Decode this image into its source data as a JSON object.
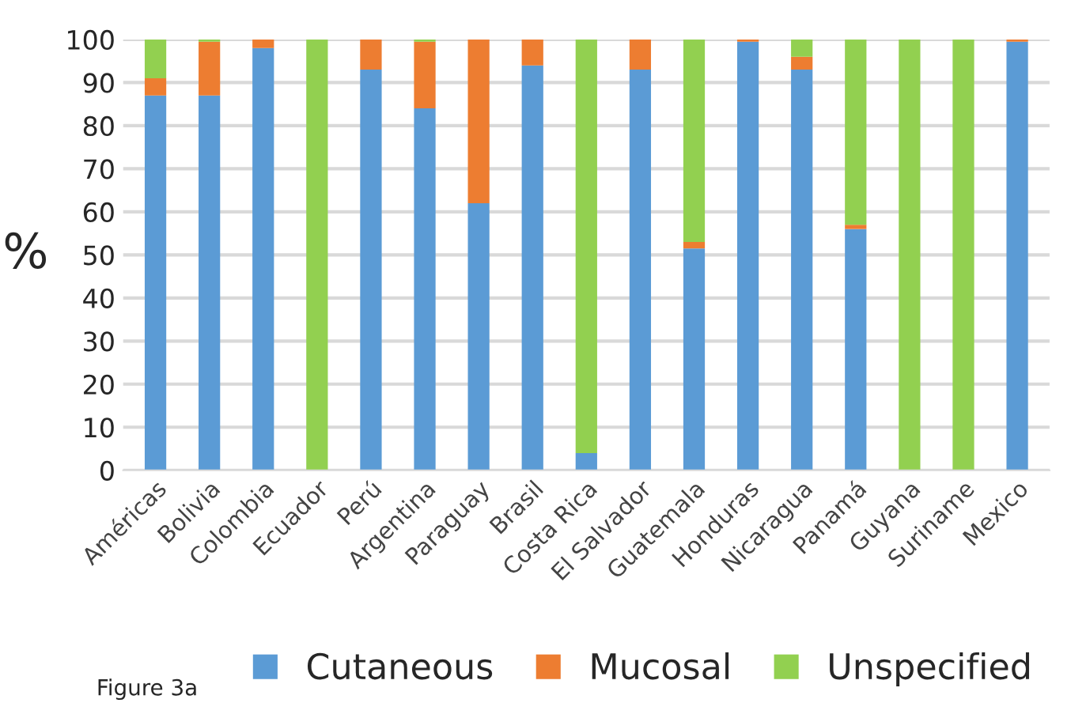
{
  "chart_data": {
    "type": "bar",
    "stacked": true,
    "ylabel": "%",
    "categories": [
      "Américas",
      "Bolivia",
      "Colombia",
      "Ecuador",
      "Perú",
      "Argentina",
      "Paraguay",
      "Brasil",
      "Costa Rica",
      "El Salvador",
      "Guatemala",
      "Honduras",
      "Nicaragua",
      "Panamá",
      "Guyana",
      "Suriname",
      "Mexico"
    ],
    "series": [
      {
        "name": "Cutaneous",
        "color": "#5b9bd5",
        "values": [
          87,
          87,
          98,
          0,
          93,
          84,
          62,
          94,
          4,
          93,
          51.5,
          99.5,
          93,
          56,
          0,
          0,
          99.5
        ]
      },
      {
        "name": "Mucosal",
        "color": "#ed7d31",
        "values": [
          4,
          12.5,
          2,
          0,
          7,
          15.5,
          38,
          6,
          0,
          7,
          1.5,
          0.5,
          3,
          1,
          0,
          0,
          0.5
        ]
      },
      {
        "name": "Unspecified",
        "color": "#92d050",
        "values": [
          9,
          0.5,
          0,
          100,
          0,
          0.5,
          0,
          0,
          96,
          0,
          47,
          0,
          4,
          43,
          100,
          100,
          0
        ]
      }
    ],
    "ylim": [
      0,
      100
    ],
    "yticks": [
      0,
      10,
      20,
      30,
      40,
      50,
      60,
      70,
      80,
      90,
      100
    ],
    "grid": "y",
    "legend": "bottom",
    "annotations": [
      "Figure 3a"
    ]
  }
}
